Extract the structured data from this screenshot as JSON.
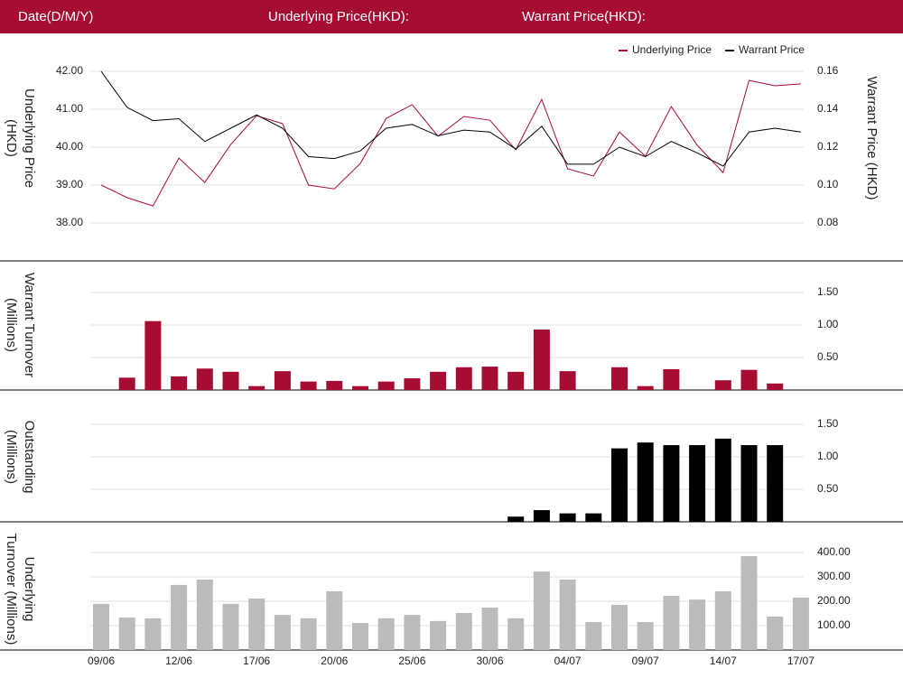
{
  "header": {
    "date_label": "Date(D/M/Y)",
    "underlying_label": "Underlying Price(HKD):",
    "warrant_label": "Warrant Price(HKD):"
  },
  "chart_data": [
    {
      "type": "line",
      "y_label": [
        "Underlying Price",
        "(HKD)"
      ],
      "y2_label": [
        "Warrant  Price (HKD)"
      ],
      "legend": "top-right",
      "grid": true,
      "series": [
        {
          "name": "Underlying Price",
          "color": "#a50d33",
          "values": [
            39.0,
            38.67,
            38.45,
            39.71,
            39.07,
            40.07,
            40.83,
            40.62,
            39.0,
            38.9,
            39.57,
            40.76,
            41.12,
            40.29,
            40.81,
            40.71,
            39.93,
            41.26,
            39.43,
            39.24,
            40.4,
            39.76,
            41.07,
            40.05,
            39.33,
            41.76,
            41.62,
            41.67
          ]
        },
        {
          "name": "Warrant Price",
          "color": "#000000",
          "axis": "y2",
          "values": [
            0.16,
            0.141,
            0.134,
            0.135,
            0.123,
            0.13,
            0.137,
            0.13,
            0.115,
            0.114,
            0.118,
            0.13,
            0.132,
            0.126,
            0.129,
            0.128,
            0.119,
            0.131,
            0.111,
            0.111,
            0.12,
            0.115,
            0.123,
            0.117,
            0.11,
            0.128,
            0.13,
            0.128
          ]
        }
      ],
      "ylim": [
        37.5,
        42.5
      ],
      "yticks": [
        {
          "value": 38,
          "label": "38.00"
        },
        {
          "value": 39,
          "label": "39.00"
        },
        {
          "value": 40,
          "label": "40.00"
        },
        {
          "value": 41,
          "label": "41.00"
        },
        {
          "value": 42,
          "label": "42.00"
        }
      ],
      "y2lim": [
        0.07,
        0.17
      ],
      "y2ticks": [
        {
          "value": 0.08,
          "label": "0.08"
        },
        {
          "value": 0.1,
          "label": "0.10"
        },
        {
          "value": 0.12,
          "label": "0.12"
        },
        {
          "value": 0.14,
          "label": "0.14"
        },
        {
          "value": 0.16,
          "label": "0.16"
        }
      ]
    },
    {
      "type": "bar",
      "y_label": [
        "Warrant  Turnover",
        "(Millions)"
      ],
      "color": "#a50d33",
      "grid": true,
      "values": [
        null,
        0.19,
        1.06,
        0.21,
        0.33,
        0.28,
        0.06,
        0.29,
        0.13,
        0.14,
        0.06,
        0.13,
        0.18,
        0.28,
        0.35,
        0.36,
        0.28,
        0.93,
        0.29,
        null,
        0.35,
        0.06,
        0.32,
        null,
        0.15,
        0.31,
        0.1,
        null
      ],
      "ylim": [
        0,
        2
      ],
      "yticks": [
        {
          "value": 0.5,
          "label": "0.50"
        },
        {
          "value": 1,
          "label": "1.00"
        },
        {
          "value": 1.5,
          "label": "1.50"
        }
      ]
    },
    {
      "type": "bar",
      "y_label": [
        "Outstanding",
        "(Millions)"
      ],
      "color": "#000000",
      "grid": true,
      "values": [
        null,
        null,
        null,
        null,
        null,
        null,
        null,
        null,
        null,
        null,
        null,
        null,
        null,
        null,
        null,
        null,
        0.08,
        0.18,
        0.13,
        0.13,
        1.13,
        1.22,
        1.18,
        1.18,
        1.28,
        1.18,
        1.18,
        null
      ],
      "ylim": [
        0,
        2
      ],
      "yticks": [
        {
          "value": 0.5,
          "label": "0.50"
        },
        {
          "value": 1,
          "label": "1.00"
        },
        {
          "value": 1.5,
          "label": "1.50"
        }
      ]
    },
    {
      "type": "bar",
      "y_label": [
        "Underlying",
        "Turnover (Millions)"
      ],
      "color": "#bbbbbb",
      "grid": true,
      "categories": [
        "09/06",
        null,
        null,
        "12/06",
        null,
        null,
        "17/06",
        null,
        null,
        "20/06",
        null,
        null,
        "25/06",
        null,
        null,
        "30/06",
        null,
        null,
        "04/07",
        null,
        null,
        "09/07",
        null,
        null,
        "14/07",
        null,
        null,
        "17/07"
      ],
      "values": [
        189,
        133,
        130,
        267,
        289,
        189,
        211,
        144,
        130,
        241,
        111,
        130,
        144,
        119,
        152,
        174,
        130,
        322,
        289,
        115,
        185,
        115,
        222,
        207,
        241,
        385,
        137,
        215
      ],
      "ylim": [
        0,
        500
      ],
      "yticks": [
        {
          "value": 100,
          "label": "100.00"
        },
        {
          "value": 200,
          "label": "200.00"
        },
        {
          "value": 300,
          "label": "300.00"
        },
        {
          "value": 400,
          "label": "400.00"
        }
      ]
    }
  ]
}
